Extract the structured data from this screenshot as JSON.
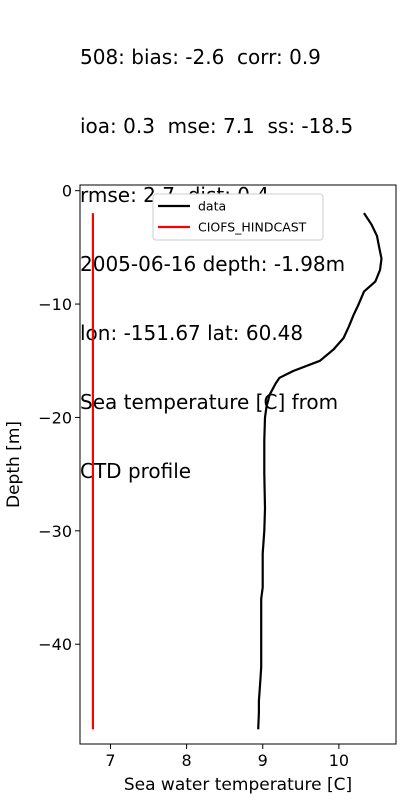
{
  "chart_data": {
    "type": "line",
    "title_lines": [
      "508: bias: -2.6  corr: 0.9",
      "ioa: 0.3  mse: 7.1  ss: -18.5",
      "rmse: 2.7  dist: 0.4",
      "2005-06-16 depth: -1.98m",
      "lon: -151.67 lat: 60.48",
      "Sea temperature [C] from",
      "CTD profile"
    ],
    "xlabel": "Sea water temperature [C]",
    "ylabel": "Depth [m]",
    "xlim": [
      6.6,
      10.75
    ],
    "ylim": [
      -48.8,
      0.5
    ],
    "xticks": [
      7,
      8,
      9,
      10
    ],
    "yticks": [
      0,
      -10,
      -20,
      -30,
      -40
    ],
    "grid": false,
    "legend_position": "top-center",
    "series": [
      {
        "name": "data",
        "color": "#000000",
        "points": [
          [
            10.33,
            -1.98
          ],
          [
            10.43,
            -3.0
          ],
          [
            10.5,
            -4.0
          ],
          [
            10.53,
            -5.0
          ],
          [
            10.56,
            -6.0
          ],
          [
            10.54,
            -7.0
          ],
          [
            10.48,
            -8.0
          ],
          [
            10.33,
            -8.9
          ],
          [
            10.26,
            -10.0
          ],
          [
            10.19,
            -11.0
          ],
          [
            10.13,
            -12.0
          ],
          [
            10.06,
            -13.0
          ],
          [
            9.93,
            -14.0
          ],
          [
            9.75,
            -15.0
          ],
          [
            9.4,
            -15.9
          ],
          [
            9.22,
            -16.5
          ],
          [
            9.17,
            -17.0
          ],
          [
            9.09,
            -18.0
          ],
          [
            9.05,
            -19.0
          ],
          [
            9.03,
            -20.0
          ],
          [
            9.02,
            -22.0
          ],
          [
            9.02,
            -25.0
          ],
          [
            9.03,
            -28.0
          ],
          [
            9.02,
            -30.0
          ],
          [
            9.0,
            -32.0
          ],
          [
            9.0,
            -35.0
          ],
          [
            8.98,
            -36.0
          ],
          [
            8.98,
            -38.0
          ],
          [
            8.98,
            -40.0
          ],
          [
            8.98,
            -42.0
          ],
          [
            8.97,
            -43.0
          ],
          [
            8.95,
            -45.0
          ],
          [
            8.95,
            -46.0
          ],
          [
            8.94,
            -47.5
          ]
        ]
      },
      {
        "name": "CIOFS_HINDCAST",
        "color": "#ff0000",
        "points": [
          [
            6.77,
            -1.98
          ],
          [
            6.77,
            -10.0
          ],
          [
            6.77,
            -20.0
          ],
          [
            6.77,
            -30.0
          ],
          [
            6.77,
            -40.0
          ],
          [
            6.77,
            -47.5
          ]
        ]
      }
    ]
  }
}
